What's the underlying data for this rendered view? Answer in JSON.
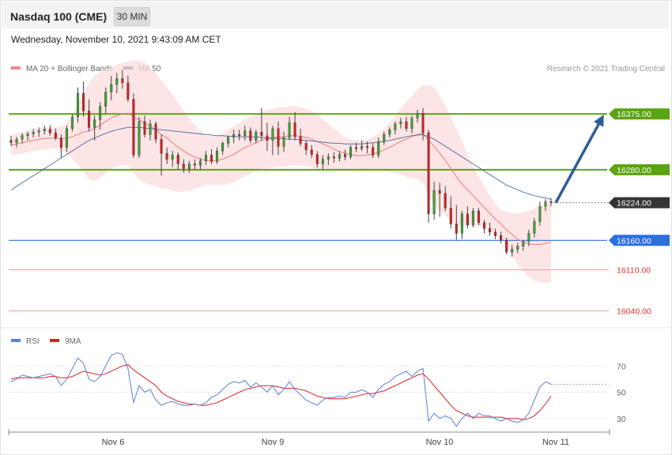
{
  "header": {
    "title": "Nasdaq 100 (CME)",
    "timeframe": "30 MIN",
    "timestamp": "Wednesday, November 10, 2021 9:43:09 AM CET"
  },
  "chart_data": [
    {
      "type": "candlestick",
      "legend": [
        {
          "label": "MA 20 + Bollinger Bands",
          "color": "#f28b82"
        },
        {
          "label": "MA 50",
          "color": "#2e5c9a"
        }
      ],
      "attribution": "Research © 2021 Trading Central",
      "ylim": [
        16010,
        16480
      ],
      "levels": [
        {
          "label": "16375.00",
          "value": 16375,
          "kind": "resistance",
          "color": "#5aa312"
        },
        {
          "label": "16280.00",
          "value": 16280,
          "kind": "resistance",
          "color": "#5aa312"
        },
        {
          "label": "16224.00",
          "value": 16224,
          "kind": "last",
          "color": "#333333"
        },
        {
          "label": "16160.00",
          "value": 16160,
          "kind": "pivot",
          "color": "#2b6fe0"
        },
        {
          "label": "16110.00",
          "value": 16110,
          "kind": "support",
          "color": "#e03030"
        },
        {
          "label": "16040.00",
          "value": 16040,
          "kind": "support",
          "color": "#e03030"
        }
      ],
      "projection": {
        "from": 16224,
        "to": 16375,
        "color": "#2e5c9a"
      },
      "x_ticks": [
        "Nov 6",
        "Nov 9",
        "Nov 10",
        "Nov 11"
      ],
      "ohlc": [
        [
          16330,
          16338,
          16320,
          16326
        ],
        [
          16326,
          16336,
          16318,
          16332
        ],
        [
          16332,
          16342,
          16325,
          16338
        ],
        [
          16338,
          16345,
          16330,
          16341
        ],
        [
          16341,
          16350,
          16335,
          16344
        ],
        [
          16344,
          16352,
          16336,
          16346
        ],
        [
          16346,
          16355,
          16340,
          16349
        ],
        [
          16349,
          16356,
          16338,
          16343
        ],
        [
          16343,
          16350,
          16330,
          16334
        ],
        [
          16334,
          16340,
          16300,
          16318
        ],
        [
          16318,
          16355,
          16310,
          16350
        ],
        [
          16350,
          16375,
          16345,
          16370
        ],
        [
          16370,
          16420,
          16360,
          16410
        ],
        [
          16410,
          16430,
          16370,
          16380
        ],
        [
          16380,
          16400,
          16345,
          16352
        ],
        [
          16352,
          16372,
          16330,
          16365
        ],
        [
          16365,
          16395,
          16348,
          16388
        ],
        [
          16388,
          16420,
          16375,
          16412
        ],
        [
          16412,
          16440,
          16398,
          16425
        ],
        [
          16425,
          16445,
          16410,
          16435
        ],
        [
          16435,
          16450,
          16418,
          16428
        ],
        [
          16428,
          16440,
          16395,
          16400
        ],
        [
          16400,
          16410,
          16300,
          16305
        ],
        [
          16305,
          16370,
          16300,
          16362
        ],
        [
          16362,
          16372,
          16335,
          16340
        ],
        [
          16340,
          16365,
          16330,
          16358
        ],
        [
          16358,
          16362,
          16325,
          16332
        ],
        [
          16332,
          16340,
          16270,
          16308
        ],
        [
          16308,
          16318,
          16290,
          16298
        ],
        [
          16298,
          16312,
          16285,
          16305
        ],
        [
          16305,
          16310,
          16280,
          16290
        ],
        [
          16290,
          16298,
          16275,
          16282
        ],
        [
          16282,
          16295,
          16275,
          16290
        ],
        [
          16290,
          16298,
          16280,
          16288
        ],
        [
          16288,
          16300,
          16280,
          16295
        ],
        [
          16295,
          16312,
          16288,
          16305
        ],
        [
          16305,
          16315,
          16290,
          16294
        ],
        [
          16294,
          16318,
          16290,
          16312
        ],
        [
          16312,
          16328,
          16305,
          16325
        ],
        [
          16325,
          16338,
          16318,
          16335
        ],
        [
          16335,
          16348,
          16325,
          16340
        ],
        [
          16340,
          16348,
          16330,
          16338
        ],
        [
          16338,
          16355,
          16330,
          16346
        ],
        [
          16346,
          16352,
          16325,
          16330
        ],
        [
          16330,
          16348,
          16325,
          16344
        ],
        [
          16344,
          16385,
          16330,
          16338
        ],
        [
          16338,
          16360,
          16312,
          16330
        ],
        [
          16330,
          16355,
          16305,
          16350
        ],
        [
          16350,
          16362,
          16305,
          16320
        ],
        [
          16320,
          16345,
          16310,
          16335
        ],
        [
          16335,
          16370,
          16330,
          16360
        ],
        [
          16360,
          16378,
          16330,
          16336
        ],
        [
          16336,
          16350,
          16320,
          16325
        ],
        [
          16325,
          16330,
          16305,
          16314
        ],
        [
          16314,
          16322,
          16300,
          16306
        ],
        [
          16306,
          16312,
          16284,
          16290
        ],
        [
          16290,
          16305,
          16280,
          16298
        ],
        [
          16298,
          16308,
          16288,
          16302
        ],
        [
          16302,
          16310,
          16292,
          16300
        ],
        [
          16300,
          16312,
          16294,
          16306
        ],
        [
          16306,
          16314,
          16296,
          16302
        ],
        [
          16302,
          16322,
          16298,
          16318
        ],
        [
          16318,
          16326,
          16310,
          16316
        ],
        [
          16316,
          16330,
          16312,
          16320
        ],
        [
          16320,
          16328,
          16308,
          16318
        ],
        [
          16318,
          16325,
          16300,
          16305
        ],
        [
          16305,
          16335,
          16300,
          16328
        ],
        [
          16328,
          16345,
          16322,
          16340
        ],
        [
          16340,
          16352,
          16335,
          16348
        ],
        [
          16348,
          16362,
          16340,
          16358
        ],
        [
          16358,
          16368,
          16350,
          16362
        ],
        [
          16362,
          16370,
          16345,
          16350
        ],
        [
          16350,
          16372,
          16342,
          16368
        ],
        [
          16368,
          16382,
          16360,
          16376
        ],
        [
          16376,
          16385,
          16330,
          16343
        ],
        [
          16343,
          16348,
          16190,
          16205
        ],
        [
          16205,
          16260,
          16195,
          16245
        ],
        [
          16245,
          16258,
          16200,
          16240
        ],
        [
          16240,
          16252,
          16210,
          16215
        ],
        [
          16215,
          16235,
          16180,
          16188
        ],
        [
          16188,
          16220,
          16160,
          16172
        ],
        [
          16172,
          16210,
          16162,
          16205
        ],
        [
          16205,
          16218,
          16180,
          16186
        ],
        [
          16186,
          16215,
          16182,
          16210
        ],
        [
          16210,
          16215,
          16186,
          16190
        ],
        [
          16190,
          16195,
          16172,
          16180
        ],
        [
          16180,
          16190,
          16168,
          16174
        ],
        [
          16174,
          16180,
          16162,
          16168
        ],
        [
          16168,
          16175,
          16155,
          16160
        ],
        [
          16160,
          16165,
          16136,
          16140
        ],
        [
          16140,
          16152,
          16132,
          16145
        ],
        [
          16145,
          16156,
          16138,
          16150
        ],
        [
          16150,
          16160,
          16142,
          16158
        ],
        [
          16158,
          16178,
          16150,
          16172
        ],
        [
          16172,
          16198,
          16165,
          16192
        ],
        [
          16192,
          16226,
          16185,
          16218
        ],
        [
          16218,
          16230,
          16210,
          16226
        ],
        [
          16226,
          16232,
          16218,
          16224
        ]
      ],
      "ma20": [
        16322,
        16324,
        16326,
        16328,
        16330,
        16332,
        16333,
        16334,
        16334,
        16333,
        16334,
        16336,
        16340,
        16344,
        16346,
        16350,
        16356,
        16362,
        16368,
        16372,
        16375,
        16376,
        16370,
        16365,
        16360,
        16354,
        16348,
        16340,
        16334,
        16326,
        16318,
        16312,
        16306,
        16302,
        16298,
        16296,
        16295,
        16296,
        16298,
        16302,
        16306,
        16312,
        16318,
        16322,
        16326,
        16330,
        16332,
        16334,
        16336,
        16336,
        16338,
        16338,
        16337,
        16335,
        16332,
        16328,
        16324,
        16320,
        16315,
        16311,
        16308,
        16306,
        16304,
        16304,
        16305,
        16307,
        16310,
        16314,
        16318,
        16323,
        16328,
        16332,
        16336,
        16340,
        16341,
        16330,
        16320,
        16308,
        16296,
        16282,
        16268,
        16256,
        16246,
        16236,
        16226,
        16216,
        16206,
        16196,
        16188,
        16178,
        16170,
        16162,
        16158,
        16154,
        16153,
        16153,
        16155,
        16157
      ],
      "bb_upper": [
        16340,
        16342,
        16344,
        16346,
        16348,
        16350,
        16352,
        16352,
        16352,
        16354,
        16360,
        16372,
        16392,
        16410,
        16428,
        16440,
        16446,
        16450,
        16454,
        16458,
        16462,
        16464,
        16466,
        16466,
        16462,
        16454,
        16444,
        16432,
        16420,
        16408,
        16394,
        16380,
        16368,
        16356,
        16346,
        16338,
        16336,
        16338,
        16342,
        16348,
        16354,
        16360,
        16366,
        16370,
        16374,
        16378,
        16382,
        16384,
        16386,
        16387,
        16388,
        16388,
        16386,
        16384,
        16380,
        16374,
        16366,
        16358,
        16350,
        16342,
        16336,
        16332,
        16330,
        16330,
        16332,
        16336,
        16342,
        16350,
        16360,
        16372,
        16384,
        16396,
        16406,
        16416,
        16424,
        16424,
        16420,
        16406,
        16390,
        16370,
        16350,
        16328,
        16306,
        16286,
        16268,
        16252,
        16236,
        16222,
        16212,
        16208,
        16206,
        16206,
        16208,
        16210,
        16214,
        16218,
        16222,
        16226
      ],
      "bb_lower": [
        16304,
        16306,
        16308,
        16310,
        16312,
        16314,
        16314,
        16316,
        16316,
        16312,
        16308,
        16300,
        16288,
        16278,
        16264,
        16260,
        16266,
        16274,
        16282,
        16286,
        16288,
        16288,
        16274,
        16264,
        16258,
        16254,
        16252,
        16248,
        16248,
        16244,
        16242,
        16244,
        16244,
        16248,
        16250,
        16254,
        16254,
        16254,
        16254,
        16256,
        16258,
        16264,
        16270,
        16274,
        16278,
        16282,
        16282,
        16284,
        16286,
        16285,
        16288,
        16288,
        16288,
        16286,
        16284,
        16282,
        16282,
        16282,
        16280,
        16280,
        16280,
        16280,
        16278,
        16278,
        16278,
        16278,
        16278,
        16278,
        16276,
        16274,
        16272,
        16268,
        16266,
        16264,
        16258,
        16236,
        16220,
        16210,
        16202,
        16194,
        16186,
        16184,
        16186,
        16186,
        16184,
        16180,
        16176,
        16170,
        16164,
        16148,
        16134,
        16118,
        16108,
        16098,
        16092,
        16088,
        16088,
        16088
      ],
      "ma50": [
        16245,
        16252,
        16258,
        16264,
        16270,
        16276,
        16282,
        16288,
        16294,
        16300,
        16306,
        16312,
        16318,
        16324,
        16330,
        16334,
        16338,
        16342,
        16345,
        16348,
        16350,
        16352,
        16352,
        16352,
        16351,
        16350,
        16349,
        16348,
        16347,
        16346,
        16345,
        16344,
        16343,
        16342,
        16341,
        16340,
        16339,
        16338,
        16338,
        16337,
        16337,
        16336,
        16336,
        16336,
        16336,
        16335,
        16334,
        16334,
        16333,
        16333,
        16332,
        16332,
        16331,
        16330,
        16329,
        16328,
        16327,
        16326,
        16325,
        16325,
        16324,
        16324,
        16324,
        16324,
        16325,
        16326,
        16327,
        16328,
        16330,
        16332,
        16334,
        16336,
        16338,
        16339,
        16340,
        16336,
        16332,
        16326,
        16320,
        16314,
        16308,
        16302,
        16296,
        16290,
        16284,
        16278,
        16272,
        16266,
        16260,
        16254,
        16250,
        16246,
        16242,
        16239,
        16236,
        16234,
        16232,
        16230
      ]
    },
    {
      "type": "line",
      "legend": [
        {
          "label": "RSI",
          "color": "#5a7fd6"
        },
        {
          "label": "9MA",
          "color": "#e02020"
        }
      ],
      "ylim": [
        10,
        90
      ],
      "y_ticks": [
        "70",
        "50",
        "30"
      ],
      "y_tick_values": [
        70,
        50,
        30
      ],
      "reference_value": 56,
      "series": [
        {
          "values": [
            58,
            60,
            63,
            62,
            61,
            62,
            63,
            64,
            62,
            55,
            60,
            68,
            76,
            72,
            60,
            58,
            62,
            70,
            78,
            80,
            79,
            68,
            42,
            55,
            50,
            52,
            44,
            40,
            42,
            43,
            41,
            40,
            40,
            41,
            40,
            42,
            46,
            48,
            52,
            56,
            58,
            57,
            59,
            54,
            57,
            54,
            50,
            55,
            48,
            52,
            58,
            52,
            48,
            44,
            42,
            40,
            44,
            46,
            46,
            47,
            46,
            50,
            50,
            52,
            50,
            46,
            52,
            56,
            58,
            62,
            64,
            66,
            62,
            66,
            68,
            28,
            34,
            30,
            32,
            30,
            24,
            30,
            34,
            30,
            34,
            32,
            32,
            30,
            28,
            30,
            28,
            27,
            29,
            34,
            44,
            54,
            58,
            56
          ]
        },
        {
          "values": [
            60,
            61,
            61,
            61,
            61,
            61,
            61,
            62,
            62,
            61,
            61,
            62,
            64,
            66,
            65,
            64,
            63,
            64,
            66,
            68,
            70,
            71,
            67,
            64,
            61,
            58,
            55,
            50,
            47,
            45,
            43,
            42,
            41,
            41,
            40,
            40,
            41,
            42,
            44,
            46,
            48,
            50,
            52,
            53,
            54,
            55,
            55,
            55,
            54,
            53,
            53,
            53,
            52,
            51,
            49,
            47,
            46,
            45,
            45,
            45,
            45,
            46,
            47,
            48,
            49,
            49,
            50,
            51,
            53,
            55,
            57,
            59,
            61,
            63,
            64,
            60,
            55,
            50,
            45,
            40,
            36,
            34,
            32,
            31,
            31,
            31,
            31,
            31,
            31,
            30,
            30,
            30,
            29,
            30,
            32,
            36,
            41,
            47
          ]
        }
      ]
    }
  ]
}
